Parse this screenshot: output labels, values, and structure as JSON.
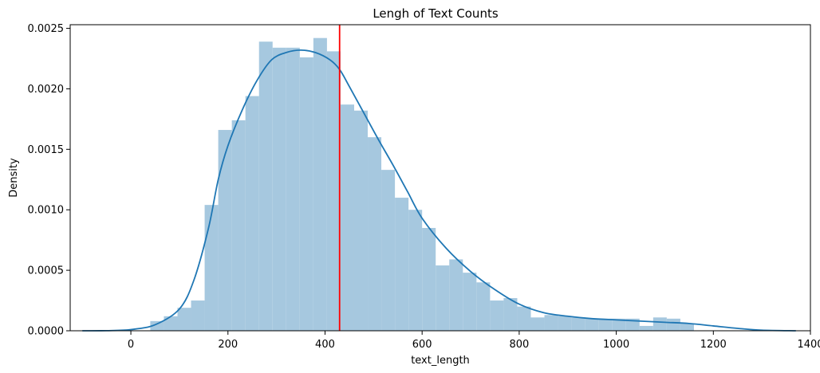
{
  "chart_data": {
    "type": "histogram",
    "title": "Lengh of Text Counts",
    "xlabel": "text_length",
    "ylabel": "Density",
    "xlim": [
      -125,
      1400
    ],
    "ylim": [
      0,
      0.00253
    ],
    "xticks": [
      0,
      200,
      400,
      600,
      800,
      1000,
      1200,
      1400
    ],
    "xtick_labels": [
      "0",
      "200",
      "400",
      "600",
      "800",
      "1000",
      "1200",
      "1400"
    ],
    "yticks": [
      0,
      0.0005,
      0.001,
      0.0015,
      0.002,
      0.0025
    ],
    "ytick_labels": [
      "0.0000",
      "0.0005",
      "0.0010",
      "0.0015",
      "0.0020",
      "0.0025"
    ],
    "grid": false,
    "bin_width": 28,
    "bins": [
      {
        "x0": 40,
        "density": 8e-05
      },
      {
        "x0": 68,
        "density": 0.00012
      },
      {
        "x0": 96,
        "density": 0.00019
      },
      {
        "x0": 124,
        "density": 0.00025
      },
      {
        "x0": 152,
        "density": 0.00104
      },
      {
        "x0": 180,
        "density": 0.00166
      },
      {
        "x0": 208,
        "density": 0.00174
      },
      {
        "x0": 236,
        "density": 0.00194
      },
      {
        "x0": 264,
        "density": 0.00239
      },
      {
        "x0": 292,
        "density": 0.00234
      },
      {
        "x0": 320,
        "density": 0.00234
      },
      {
        "x0": 348,
        "density": 0.00226
      },
      {
        "x0": 376,
        "density": 0.00242
      },
      {
        "x0": 404,
        "density": 0.00231
      },
      {
        "x0": 432,
        "density": 0.00187
      },
      {
        "x0": 460,
        "density": 0.00182
      },
      {
        "x0": 488,
        "density": 0.0016
      },
      {
        "x0": 516,
        "density": 0.00133
      },
      {
        "x0": 544,
        "density": 0.0011
      },
      {
        "x0": 572,
        "density": 0.001
      },
      {
        "x0": 600,
        "density": 0.00085
      },
      {
        "x0": 628,
        "density": 0.00054
      },
      {
        "x0": 656,
        "density": 0.00059
      },
      {
        "x0": 684,
        "density": 0.00048
      },
      {
        "x0": 712,
        "density": 0.0004
      },
      {
        "x0": 740,
        "density": 0.00025
      },
      {
        "x0": 768,
        "density": 0.00027
      },
      {
        "x0": 796,
        "density": 0.0002
      },
      {
        "x0": 824,
        "density": 0.00011
      },
      {
        "x0": 852,
        "density": 0.00013
      },
      {
        "x0": 880,
        "density": 0.00012
      },
      {
        "x0": 908,
        "density": 0.00011
      },
      {
        "x0": 936,
        "density": 0.0001
      },
      {
        "x0": 964,
        "density": 0.0001
      },
      {
        "x0": 992,
        "density": 0.0001
      },
      {
        "x0": 1020,
        "density": 0.0001
      },
      {
        "x0": 1048,
        "density": 4e-05
      },
      {
        "x0": 1076,
        "density": 0.00011
      },
      {
        "x0": 1104,
        "density": 0.0001
      },
      {
        "x0": 1132,
        "density": 6e-05
      }
    ],
    "kde": {
      "x": [
        -100,
        -50,
        0,
        50,
        100,
        130,
        160,
        180,
        200,
        230,
        260,
        290,
        320,
        350,
        380,
        410,
        430,
        450,
        480,
        510,
        540,
        570,
        600,
        650,
        700,
        750,
        800,
        850,
        900,
        950,
        1000,
        1050,
        1100,
        1150,
        1200,
        1250,
        1300,
        1370
      ],
      "y": [
        0,
        1e-06,
        1e-05,
        5e-05,
        0.00018,
        0.00042,
        0.00085,
        0.00125,
        0.00153,
        0.00183,
        0.00207,
        0.00224,
        0.0023,
        0.00232,
        0.0023,
        0.00224,
        0.00216,
        0.00202,
        0.0018,
        0.00158,
        0.00137,
        0.00115,
        0.00093,
        0.00068,
        0.00049,
        0.00034,
        0.00022,
        0.00015,
        0.00012,
        0.0001,
        9e-05,
        8e-05,
        7e-05,
        6e-05,
        4e-05,
        2e-05,
        5e-06,
        0
      ]
    },
    "vline": {
      "x": 430
    }
  },
  "colors": {
    "bar_fill": "#a6c8df",
    "kde_line": "#1f77b4",
    "vline": "#ff0000",
    "axis": "#000000",
    "background": "#ffffff"
  }
}
